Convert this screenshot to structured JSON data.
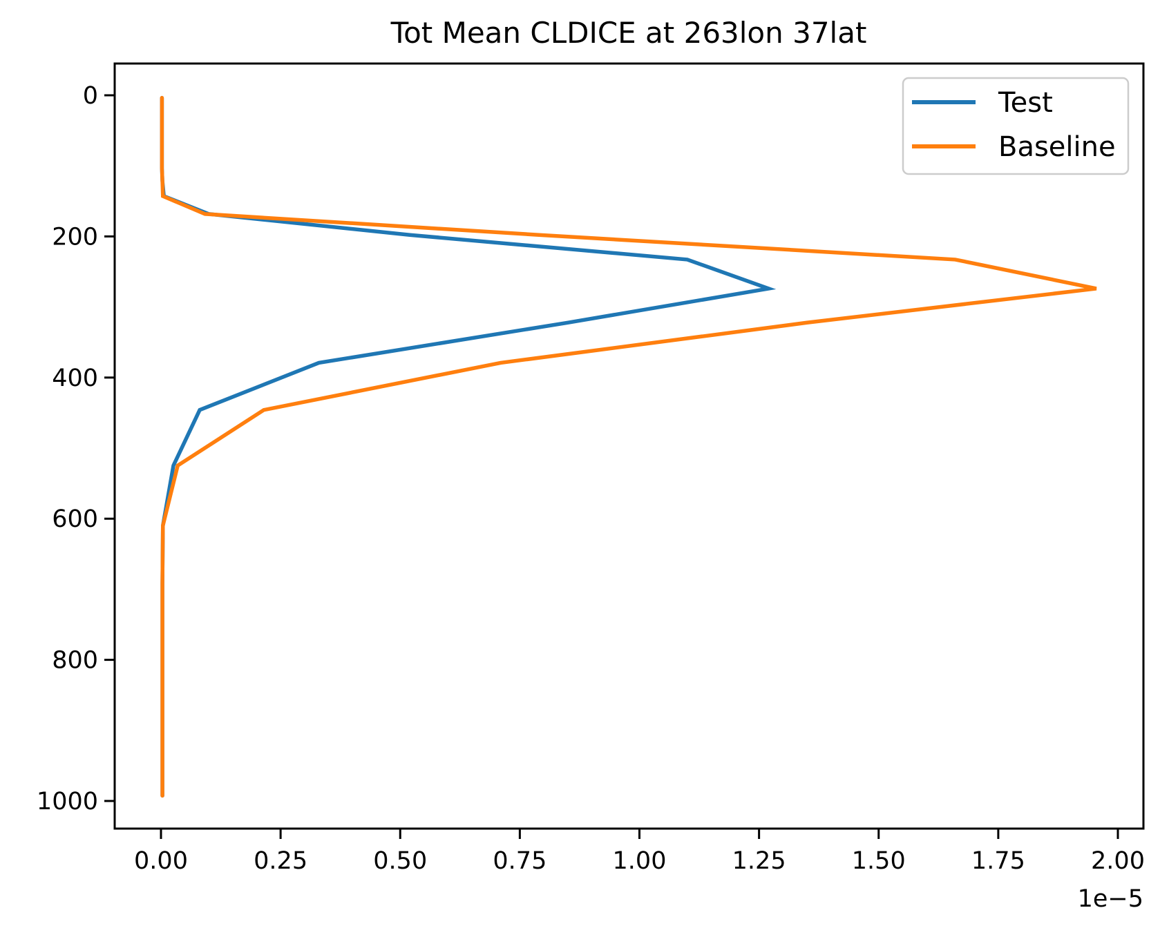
{
  "title": "Tot Mean CLDICE at 263lon 37lat",
  "legend": {
    "position": "upper right",
    "items": [
      {
        "label": "Test",
        "color": "#1f77b4"
      },
      {
        "label": "Baseline",
        "color": "#ff7f0e"
      }
    ]
  },
  "axes": {
    "x_offset_label": "1e−5",
    "x_tick_labels": [
      "0.00",
      "0.25",
      "0.50",
      "0.75",
      "1.00",
      "1.25",
      "1.50",
      "1.75",
      "2.00"
    ],
    "y_tick_labels": [
      "0",
      "200",
      "400",
      "600",
      "800",
      "1000"
    ]
  },
  "chart_data": {
    "type": "line",
    "title": "Tot Mean CLDICE at 263lon 37lat",
    "orientation": "vertical profile: value on x axis, pressure level (hPa) on y axis, y axis inverted (0 at top, 1000 at bottom)",
    "xlabel": "",
    "ylabel": "",
    "x_value_units": "values shown in multiples of 1e-5 (axis offset label 1e−5)",
    "x_ticks": [
      0.0,
      0.25,
      0.5,
      0.75,
      1.0,
      1.25,
      1.5,
      1.75,
      2.0
    ],
    "y_ticks": [
      0,
      200,
      400,
      600,
      800,
      1000
    ],
    "xlim": [
      -0.097,
      2.053
    ],
    "ylim": [
      1039,
      -45
    ],
    "grid": false,
    "legend_position": "upper right",
    "y_pressure_hPa": [
      3.6,
      14.4,
      38.3,
      72.0,
      103.3,
      121.5,
      142.9,
      168.2,
      197.9,
      232.8,
      273.9,
      322.2,
      379.1,
      445.9,
      524.7,
      609.8,
      691.4,
      763.4,
      820.8,
      887.0,
      936.2,
      976.3,
      992.5
    ],
    "series": [
      {
        "name": "Test",
        "color": "#1f77b4",
        "values": [
          0.002,
          0.002,
          0.002,
          0.002,
          0.002,
          0.003,
          0.006,
          0.1,
          0.52,
          1.1,
          1.27,
          0.85,
          0.33,
          0.081,
          0.026,
          0.004,
          0.003,
          0.003,
          0.003,
          0.003,
          0.003,
          0.003,
          0.003
        ]
      },
      {
        "name": "Baseline",
        "color": "#ff7f0e",
        "values": [
          0.002,
          0.002,
          0.002,
          0.002,
          0.002,
          0.003,
          0.004,
          0.092,
          0.79,
          1.66,
          1.955,
          1.35,
          0.71,
          0.215,
          0.035,
          0.004,
          0.003,
          0.003,
          0.003,
          0.003,
          0.003,
          0.003,
          0.003
        ]
      }
    ]
  }
}
